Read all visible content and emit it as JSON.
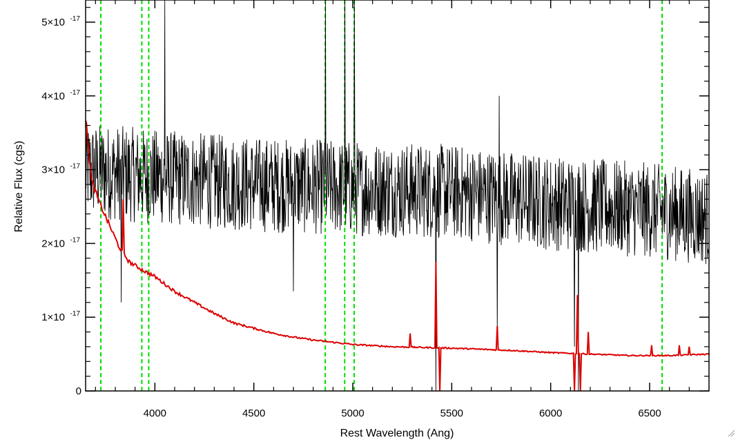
{
  "chart_data": {
    "type": "line",
    "title": "",
    "xlabel": "Rest Wavelength (Ang)",
    "ylabel": "Relative Flux (cgs)",
    "xlim": [
      3650,
      6800
    ],
    "ylim": [
      0,
      5.3e-17
    ],
    "x_ticks": [
      {
        "value": 4000,
        "label": "4000"
      },
      {
        "value": 4500,
        "label": "4500"
      },
      {
        "value": 5000,
        "label": "5000"
      },
      {
        "value": 5500,
        "label": "5500"
      },
      {
        "value": 6000,
        "label": "6000"
      },
      {
        "value": 6500,
        "label": "6500"
      }
    ],
    "y_ticks": [
      {
        "value": 0,
        "label": "0"
      },
      {
        "value": 1e-17,
        "label": "1×10"
      },
      {
        "value": 2e-17,
        "label": "2×10"
      },
      {
        "value": 3e-17,
        "label": "3×10"
      },
      {
        "value": 4e-17,
        "label": "4×10"
      },
      {
        "value": 5e-17,
        "label": "5×10"
      }
    ],
    "y_tick_exponent": "-17",
    "grid": false,
    "emission_line_markers": {
      "color": "#00dd00",
      "style": "dashed",
      "x": [
        3727,
        3934,
        3969,
        4861,
        4959,
        5007,
        6563
      ]
    },
    "series": [
      {
        "color": "#000000",
        "style": "noisy",
        "mean": [
          [
            3650,
            3e-17
          ],
          [
            4000,
            2.9e-17
          ],
          [
            4500,
            2.8e-17
          ],
          [
            5000,
            2.75e-17
          ],
          [
            5500,
            2.7e-17
          ],
          [
            6000,
            2.55e-17
          ],
          [
            6500,
            2.45e-17
          ],
          [
            6800,
            2.35e-17
          ]
        ],
        "scatter": 6.5e-18,
        "spikes": [
          [
            3830,
            1.2e-17
          ],
          [
            4050,
            5.3e-17
          ],
          [
            4700,
            1.35e-17
          ],
          [
            4861,
            5.3e-17
          ],
          [
            4959,
            5.3e-17
          ],
          [
            5007,
            5.3e-17
          ],
          [
            5420,
            0
          ],
          [
            5730,
            8e-18
          ],
          [
            5740,
            4e-17
          ],
          [
            6120,
            6e-18
          ],
          [
            6140,
            0
          ]
        ]
      },
      {
        "color": "#dd0000",
        "style": "continuum",
        "points": [
          [
            3650,
            3.7e-17
          ],
          [
            3680,
            2.85e-17
          ],
          [
            3720,
            2.55e-17
          ],
          [
            3770,
            2.25e-17
          ],
          [
            3820,
            1.95e-17
          ],
          [
            3870,
            1.75e-17
          ],
          [
            3950,
            1.62e-17
          ],
          [
            4000,
            1.55e-17
          ],
          [
            4100,
            1.35e-17
          ],
          [
            4200,
            1.2e-17
          ],
          [
            4300,
            1.05e-17
          ],
          [
            4400,
            9.2e-18
          ],
          [
            4500,
            8.5e-18
          ],
          [
            4600,
            7.8e-18
          ],
          [
            4700,
            7.3e-18
          ],
          [
            4800,
            6.9e-18
          ],
          [
            4900,
            6.6e-18
          ],
          [
            5000,
            6.3e-18
          ],
          [
            5200,
            6e-18
          ],
          [
            5500,
            5.8e-18
          ],
          [
            5800,
            5.5e-18
          ],
          [
            6000,
            5.2e-18
          ],
          [
            6200,
            5e-18
          ],
          [
            6400,
            4.8e-18
          ],
          [
            6600,
            4.8e-18
          ],
          [
            6800,
            5e-18
          ]
        ],
        "features": [
          [
            3840,
            2.6e-17
          ],
          [
            5290,
            7.8e-18
          ],
          [
            5420,
            1.75e-17
          ],
          [
            5440,
            0
          ],
          [
            5730,
            8.8e-18
          ],
          [
            6120,
            0
          ],
          [
            6135,
            1.3e-17
          ],
          [
            6150,
            0
          ],
          [
            6190,
            8e-18
          ],
          [
            6510,
            6.2e-18
          ],
          [
            6650,
            6.2e-18
          ],
          [
            6700,
            6e-18
          ]
        ]
      }
    ]
  }
}
